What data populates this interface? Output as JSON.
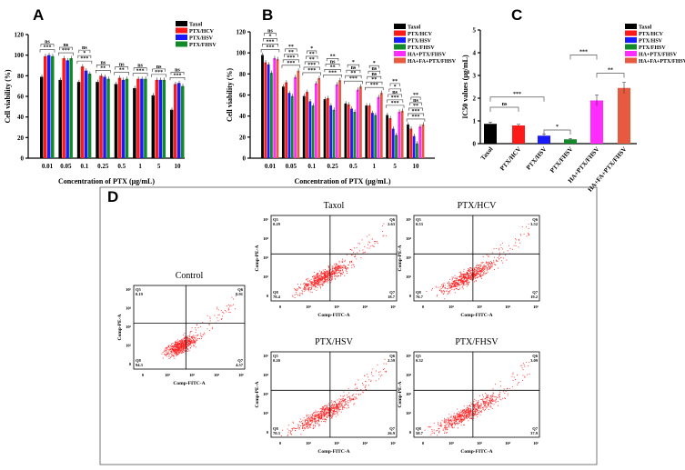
{
  "panel_letters": {
    "a": "A",
    "b": "B",
    "c": "C",
    "d": "D"
  },
  "colors": {
    "Taxol": "#000000",
    "PTX/HCV": "#ff1a1a",
    "PTX/HSV": "#1a1aff",
    "PTX/FHSV": "#138a2a",
    "HA+PTX/FHSV": "#ff2bff",
    "HA+FA+PTX/FHSV": "#e85a40",
    "dots": "#ff2020"
  },
  "chart_data": [
    {
      "id": "A",
      "type": "bar",
      "title": "",
      "xlabel": "Concentration of PTX (μg/mL)",
      "ylabel": "Cell viability (%)",
      "ylim": [
        0,
        120
      ],
      "yticks": [
        0,
        20,
        40,
        60,
        80,
        100,
        120
      ],
      "categories": [
        "0.01",
        "0.05",
        "0.1",
        "0.25",
        "0.5",
        "1",
        "5",
        "10"
      ],
      "legend_position": "top-right",
      "series": [
        {
          "name": "Taxol",
          "values": [
            79,
            76,
            74,
            74,
            72,
            68,
            61,
            47
          ]
        },
        {
          "name": "PTX/HCV",
          "values": [
            99,
            97,
            89,
            80,
            78,
            77,
            76,
            72
          ]
        },
        {
          "name": "PTX/HSV",
          "values": [
            100,
            95,
            85,
            79,
            76,
            77,
            76,
            73
          ]
        },
        {
          "name": "PTX/FHSV",
          "values": [
            99,
            97,
            82,
            77,
            77,
            77,
            76,
            70
          ]
        }
      ],
      "significance": [
        [
          "***",
          "ns"
        ],
        [
          "***",
          "ns"
        ],
        [
          "***",
          "*",
          "ns"
        ],
        [
          "**",
          "ns"
        ],
        [
          "**",
          "ns"
        ],
        [
          "***",
          "ns"
        ],
        [
          "***",
          "ns"
        ],
        [
          "***",
          "ns"
        ]
      ]
    },
    {
      "id": "B",
      "type": "bar",
      "title": "",
      "xlabel": "Concentration of PTX (μg/mL)",
      "ylabel": "Cell viability (%)",
      "ylim": [
        0,
        120
      ],
      "yticks": [
        0,
        20,
        40,
        60,
        80,
        100,
        120
      ],
      "categories": [
        "0.01",
        "0.05",
        "0.1",
        "0.25",
        "0.5",
        "1",
        "5",
        "10"
      ],
      "legend_position": "top-right",
      "series": [
        {
          "name": "Taxol",
          "values": [
            98,
            68,
            59,
            56,
            52,
            50,
            41,
            32
          ]
        },
        {
          "name": "PTX/HCV",
          "values": [
            91,
            72,
            63,
            57,
            51,
            50,
            38,
            28
          ]
        },
        {
          "name": "PTX/HSV",
          "values": [
            89,
            62,
            54,
            50,
            47,
            43,
            28,
            21
          ]
        },
        {
          "name": "PTX/FHSV",
          "values": [
            81,
            59,
            50,
            46,
            44,
            41,
            22,
            14
          ]
        },
        {
          "name": "HA+PTX/FHSV",
          "values": [
            95,
            77,
            71,
            70,
            65,
            58,
            44,
            30
          ]
        },
        {
          "name": "HA+FA+PTX/FHSV",
          "values": [
            94,
            83,
            76,
            74,
            68,
            62,
            45,
            32
          ]
        }
      ],
      "significance": [
        [
          "***",
          "***",
          "*",
          "ns"
        ],
        [
          "***",
          "***",
          "**",
          "**"
        ],
        [
          "***",
          "***",
          "**",
          "**",
          "*"
        ],
        [
          "***",
          "**",
          "ns",
          "**"
        ],
        [
          "***",
          "**",
          "ns",
          "*"
        ],
        [
          "***",
          "**",
          "ns",
          "ns",
          "*"
        ],
        [
          "***",
          "***",
          "ns",
          "*",
          "**"
        ],
        [
          "***",
          "***",
          "**",
          "ns",
          "**"
        ]
      ]
    },
    {
      "id": "C",
      "type": "bar",
      "title": "",
      "xlabel": "",
      "ylabel": "IC50 values (μg/mL)",
      "ylim": [
        0,
        5
      ],
      "yticks": [
        0,
        1,
        2,
        3,
        4,
        5
      ],
      "categories": [
        "Taxol",
        "PTX/HCV",
        "PTX/HSV",
        "PTX/FHSV",
        "HA+PTX/FHSV",
        "HA+FA+PTX/FHSV"
      ],
      "values": [
        0.87,
        0.8,
        0.35,
        0.19,
        1.9,
        2.45
      ],
      "errors": [
        0.08,
        0.05,
        0.08,
        0.04,
        0.25,
        0.25
      ],
      "legend_position": "top-right",
      "comparisons": [
        {
          "from": 0,
          "to": 1,
          "label": "ns",
          "level": 1.6
        },
        {
          "from": 0,
          "to": 2,
          "label": "***",
          "level": 2.05
        },
        {
          "from": 2,
          "to": 3,
          "label": "*",
          "level": 0.6
        },
        {
          "from": 3,
          "to": 4,
          "label": "***",
          "level": 3.9
        },
        {
          "from": 4,
          "to": 5,
          "label": "**",
          "level": 3.1
        }
      ]
    },
    {
      "id": "D",
      "type": "scatter",
      "xlabel": "Comp-FITC-A",
      "ylabel": "Comp-PE-A",
      "xticks": [
        "0",
        "10²",
        "10³",
        "10⁴",
        "10⁵"
      ],
      "yticks": [
        "0",
        "10²",
        "10³",
        "10⁴",
        "10⁵"
      ],
      "plots": [
        {
          "title": "Control",
          "Q5": "0.19",
          "Q6": "0.91",
          "Q7": "4.57",
          "Q8": "94.3"
        },
        {
          "title": "Taxol",
          "Q5": "0.29",
          "Q6": "2.63",
          "Q7": "18.7",
          "Q8": "78.4"
        },
        {
          "title": "PTX/HCV",
          "Q5": "0.53",
          "Q6": "3.52",
          "Q7": "19.2",
          "Q8": "76.7"
        },
        {
          "title": "PTX/HSV",
          "Q5": "0.20",
          "Q6": "2.59",
          "Q7": "26.9",
          "Q8": "70.3"
        },
        {
          "title": "PTX/FHSV",
          "Q5": "0.32",
          "Q6": "3.09",
          "Q7": "37.9",
          "Q8": "58.7"
        }
      ]
    }
  ]
}
